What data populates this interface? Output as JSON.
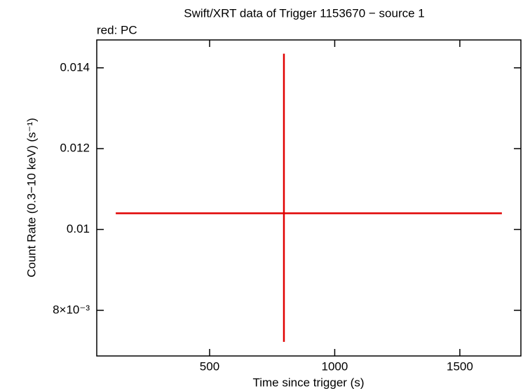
{
  "chart_data": {
    "type": "errorbar",
    "title": "Swift/XRT data of Trigger 1153670 − source 1",
    "subtitle": "red: PC",
    "x_label": "Time since trigger (s)",
    "y_label": "Count Rate (0.3−10 keV) (s⁻¹)",
    "xlim": [
      49,
      1744
    ],
    "xticks": [
      500,
      1000,
      1500
    ],
    "ylim": [
      0.00687,
      0.01469
    ],
    "yticks": [
      {
        "value": 0.008,
        "label": "8×10⁻³"
      },
      0.01,
      0.012,
      0.014
    ],
    "series": [
      {
        "name": "PC",
        "color": "#e00000",
        "x": [
          797
        ],
        "xerr_minus": [
          672
        ],
        "xerr_plus": [
          871
        ],
        "y": [
          0.0104
        ],
        "yerr_minus": [
          0.00318
        ],
        "yerr_plus": [
          0.00395
        ]
      }
    ]
  }
}
